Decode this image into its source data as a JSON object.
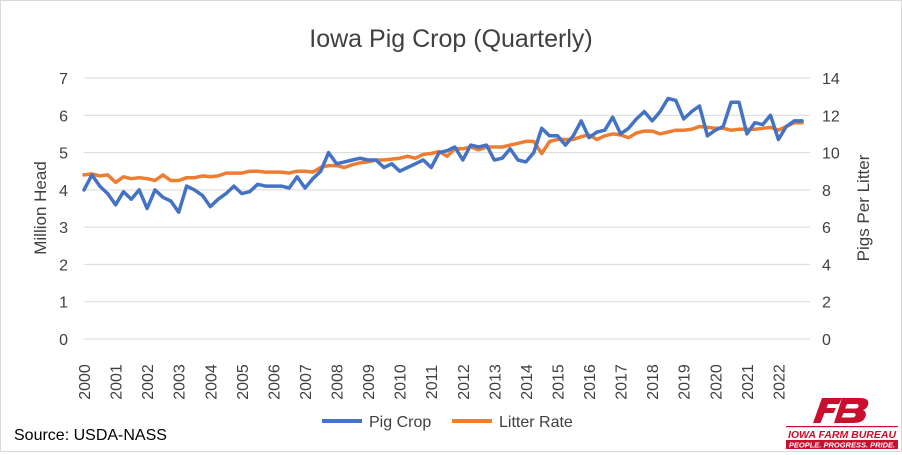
{
  "chart_data": {
    "type": "line",
    "title": "Iowa Pig Crop (Quarterly)",
    "ylabel_left": "Million Head",
    "ylabel_right": "Pigs Per Litter",
    "ylim_left": [
      0,
      7
    ],
    "ylim_right": [
      0,
      14
    ],
    "yticks_left": [
      "0",
      "1",
      "2",
      "3",
      "4",
      "5",
      "6",
      "7"
    ],
    "yticks_right": [
      "0",
      "2",
      "4",
      "6",
      "8",
      "10",
      "12",
      "14"
    ],
    "x_start": 2000,
    "x_end": 2023,
    "xticks": [
      "2000",
      "2001",
      "2002",
      "2003",
      "2004",
      "2005",
      "2006",
      "2007",
      "2008",
      "2009",
      "2010",
      "2011",
      "2012",
      "2013",
      "2014",
      "2015",
      "2016",
      "2017",
      "2018",
      "2019",
      "2020",
      "2021",
      "2022"
    ],
    "grid": true,
    "legend_position": "bottom",
    "series": [
      {
        "name": "Pig Crop",
        "axis": "left",
        "color": "#4472C4",
        "x": [
          2000.0,
          2000.25,
          2000.5,
          2000.75,
          2001.0,
          2001.25,
          2001.5,
          2001.75,
          2002.0,
          2002.25,
          2002.5,
          2002.75,
          2003.0,
          2003.25,
          2003.5,
          2003.75,
          2004.0,
          2004.25,
          2004.5,
          2004.75,
          2005.0,
          2005.25,
          2005.5,
          2005.75,
          2006.0,
          2006.25,
          2006.5,
          2006.75,
          2007.0,
          2007.25,
          2007.5,
          2007.75,
          2008.0,
          2008.25,
          2008.5,
          2008.75,
          2009.0,
          2009.25,
          2009.5,
          2009.75,
          2010.0,
          2010.25,
          2010.5,
          2010.75,
          2011.0,
          2011.25,
          2011.5,
          2011.75,
          2012.0,
          2012.25,
          2012.5,
          2012.75,
          2013.0,
          2013.25,
          2013.5,
          2013.75,
          2014.0,
          2014.25,
          2014.5,
          2014.75,
          2015.0,
          2015.25,
          2015.5,
          2015.75,
          2016.0,
          2016.25,
          2016.5,
          2016.75,
          2017.0,
          2017.25,
          2017.5,
          2017.75,
          2018.0,
          2018.25,
          2018.5,
          2018.75,
          2019.0,
          2019.25,
          2019.5,
          2019.75,
          2020.0,
          2020.25,
          2020.5,
          2020.75,
          2021.0,
          2021.25,
          2021.5,
          2021.75,
          2022.0,
          2022.25,
          2022.5,
          2022.75
        ],
        "values": [
          4.0,
          4.4,
          4.1,
          3.9,
          3.6,
          3.95,
          3.75,
          4.0,
          3.5,
          4.0,
          3.8,
          3.7,
          3.4,
          4.1,
          4.0,
          3.85,
          3.55,
          3.75,
          3.9,
          4.1,
          3.9,
          3.95,
          4.15,
          4.1,
          4.1,
          4.1,
          4.05,
          4.35,
          4.05,
          4.3,
          4.5,
          5.0,
          4.7,
          4.75,
          4.8,
          4.85,
          4.8,
          4.8,
          4.6,
          4.7,
          4.5,
          4.6,
          4.7,
          4.8,
          4.6,
          5.0,
          5.05,
          5.15,
          4.8,
          5.2,
          5.15,
          5.2,
          4.8,
          4.85,
          5.1,
          4.8,
          4.75,
          5.0,
          5.65,
          5.45,
          5.45,
          5.2,
          5.45,
          5.85,
          5.4,
          5.55,
          5.6,
          5.95,
          5.5,
          5.65,
          5.9,
          6.1,
          5.85,
          6.1,
          6.45,
          6.4,
          5.9,
          6.1,
          6.25,
          5.45,
          5.6,
          5.7,
          6.35,
          6.35,
          5.5,
          5.8,
          5.75,
          6.0,
          5.35,
          5.7,
          5.85,
          5.85
        ]
      },
      {
        "name": "Litter Rate",
        "axis": "right",
        "color": "#ED7D31",
        "x": [
          2000.0,
          2000.25,
          2000.5,
          2000.75,
          2001.0,
          2001.25,
          2001.5,
          2001.75,
          2002.0,
          2002.25,
          2002.5,
          2002.75,
          2003.0,
          2003.25,
          2003.5,
          2003.75,
          2004.0,
          2004.25,
          2004.5,
          2004.75,
          2005.0,
          2005.25,
          2005.5,
          2005.75,
          2006.0,
          2006.25,
          2006.5,
          2006.75,
          2007.0,
          2007.25,
          2007.5,
          2007.75,
          2008.0,
          2008.25,
          2008.5,
          2008.75,
          2009.0,
          2009.25,
          2009.5,
          2009.75,
          2010.0,
          2010.25,
          2010.5,
          2010.75,
          2011.0,
          2011.25,
          2011.5,
          2011.75,
          2012.0,
          2012.25,
          2012.5,
          2012.75,
          2013.0,
          2013.25,
          2013.5,
          2013.75,
          2014.0,
          2014.25,
          2014.5,
          2014.75,
          2015.0,
          2015.25,
          2015.5,
          2015.75,
          2016.0,
          2016.25,
          2016.5,
          2016.75,
          2017.0,
          2017.25,
          2017.5,
          2017.75,
          2018.0,
          2018.25,
          2018.5,
          2018.75,
          2019.0,
          2019.25,
          2019.5,
          2019.75,
          2020.0,
          2020.25,
          2020.5,
          2020.75,
          2021.0,
          2021.25,
          2021.5,
          2021.75,
          2022.0,
          2022.25,
          2022.5,
          2022.75
        ],
        "values": [
          8.8,
          8.85,
          8.75,
          8.8,
          8.4,
          8.7,
          8.6,
          8.65,
          8.6,
          8.5,
          8.8,
          8.5,
          8.5,
          8.65,
          8.65,
          8.75,
          8.7,
          8.75,
          8.9,
          8.9,
          8.9,
          9.0,
          9.0,
          8.95,
          8.95,
          8.95,
          8.9,
          9.0,
          9.0,
          8.95,
          9.2,
          9.3,
          9.3,
          9.2,
          9.35,
          9.45,
          9.5,
          9.6,
          9.6,
          9.65,
          9.7,
          9.8,
          9.7,
          9.9,
          9.95,
          10.05,
          9.8,
          10.2,
          10.2,
          10.3,
          10.15,
          10.3,
          10.3,
          10.3,
          10.4,
          10.5,
          10.6,
          10.6,
          9.95,
          10.6,
          10.7,
          10.7,
          10.7,
          10.85,
          10.95,
          10.7,
          10.9,
          11.0,
          10.95,
          10.8,
          11.05,
          11.15,
          11.15,
          11.0,
          11.1,
          11.2,
          11.2,
          11.25,
          11.4,
          11.35,
          11.3,
          11.3,
          11.2,
          11.25,
          11.25,
          11.25,
          11.3,
          11.35,
          11.2,
          11.4,
          11.6,
          11.6
        ]
      }
    ]
  },
  "source": "Source: USDA-NASS",
  "logo": {
    "text": "IOWA FARM BUREAU",
    "tagline": "PEOPLE. PROGRESS. PRIDE.",
    "color": "#C8102E"
  }
}
